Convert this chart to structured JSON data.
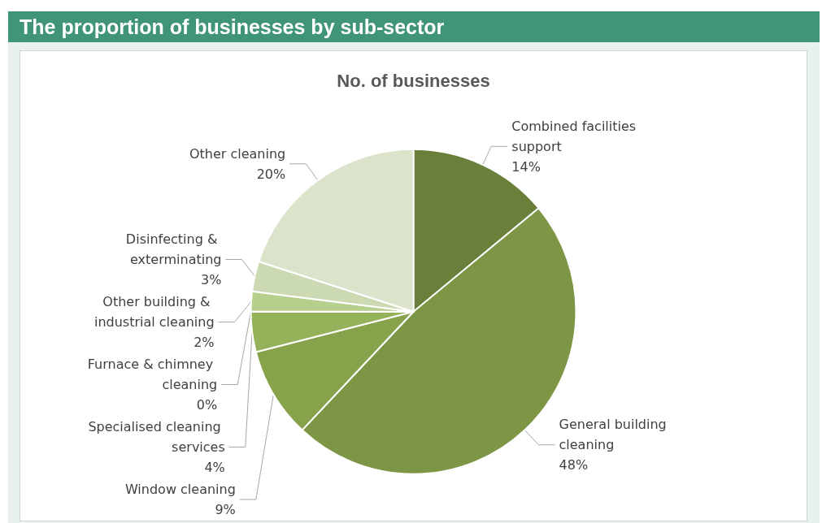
{
  "chart_data": {
    "type": "pie",
    "title": "The proportion of businesses by sub-sector",
    "subtitle": "No. of businesses",
    "categories": [
      "Combined facilities support",
      "General building cleaning",
      "Window cleaning",
      "Specialised cleaning services",
      "Furnace & chimney cleaning",
      "Other building & industrial cleaning",
      "Disinfecting & exterminating",
      "Other cleaning"
    ],
    "values": [
      14,
      48,
      9,
      4,
      0,
      2,
      3,
      20
    ],
    "value_labels": [
      "14%",
      "48%",
      "9%",
      "4%",
      "0%",
      "2%",
      "3%",
      "20%"
    ],
    "colors": [
      "#6a803a",
      "#7d9645",
      "#86a24b",
      "#93b259",
      "#a5c46e",
      "#b7cf8c",
      "#ccdab4",
      "#dbe4cb"
    ],
    "legend": false
  }
}
